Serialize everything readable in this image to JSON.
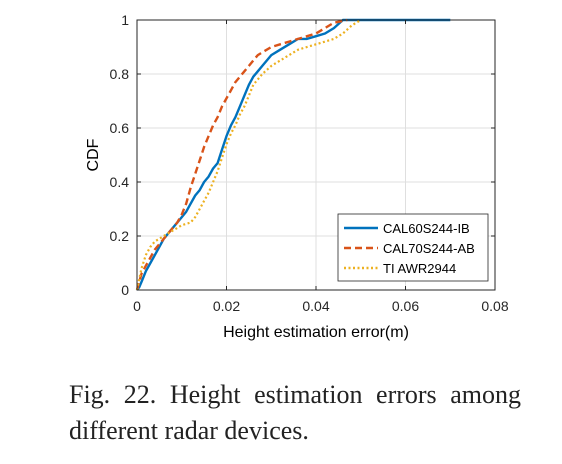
{
  "caption": "Fig. 22. Height estimation errors among different radar devices.",
  "chart_data": {
    "type": "line",
    "title": "",
    "xlabel": "Height estimation error(m)",
    "ylabel": "CDF",
    "xlim": [
      0,
      0.08
    ],
    "ylim": [
      0,
      1
    ],
    "xticks": [
      0,
      0.02,
      0.04,
      0.06,
      0.08
    ],
    "xtick_labels": [
      "0",
      "0.02",
      "0.04",
      "0.06",
      "0.08"
    ],
    "yticks": [
      0,
      0.2,
      0.4,
      0.6,
      0.8,
      1
    ],
    "ytick_labels": [
      "0",
      "0.2",
      "0.4",
      "0.6",
      "0.8",
      "1"
    ],
    "grid": true,
    "legend_position": "bottom-right",
    "series": [
      {
        "name": "CAL60S244-IB",
        "color": "#0072BD",
        "style": "solid",
        "x": [
          0,
          0.0005,
          0.001,
          0.002,
          0.003,
          0.004,
          0.005,
          0.006,
          0.007,
          0.008,
          0.009,
          0.01,
          0.011,
          0.012,
          0.013,
          0.014,
          0.015,
          0.016,
          0.017,
          0.018,
          0.019,
          0.02,
          0.021,
          0.022,
          0.023,
          0.024,
          0.025,
          0.026,
          0.027,
          0.028,
          0.029,
          0.03,
          0.032,
          0.034,
          0.036,
          0.038,
          0.04,
          0.042,
          0.044,
          0.046,
          0.05,
          0.07
        ],
        "y": [
          0,
          0.01,
          0.03,
          0.07,
          0.1,
          0.13,
          0.16,
          0.19,
          0.21,
          0.23,
          0.25,
          0.27,
          0.29,
          0.32,
          0.35,
          0.37,
          0.4,
          0.42,
          0.45,
          0.47,
          0.52,
          0.57,
          0.61,
          0.64,
          0.68,
          0.72,
          0.76,
          0.79,
          0.81,
          0.83,
          0.85,
          0.87,
          0.89,
          0.91,
          0.93,
          0.93,
          0.94,
          0.95,
          0.97,
          1.0,
          1.0,
          1.0
        ]
      },
      {
        "name": "CAL70S244-AB",
        "color": "#D95319",
        "style": "dashed",
        "x": [
          0,
          0.0005,
          0.001,
          0.002,
          0.003,
          0.004,
          0.005,
          0.006,
          0.007,
          0.008,
          0.009,
          0.01,
          0.011,
          0.012,
          0.013,
          0.014,
          0.015,
          0.016,
          0.017,
          0.018,
          0.019,
          0.02,
          0.021,
          0.022,
          0.023,
          0.024,
          0.025,
          0.026,
          0.027,
          0.028,
          0.03,
          0.032,
          0.034,
          0.036,
          0.038,
          0.04,
          0.042,
          0.044,
          0.047
        ],
        "y": [
          0,
          0.03,
          0.06,
          0.09,
          0.12,
          0.15,
          0.17,
          0.19,
          0.21,
          0.23,
          0.25,
          0.28,
          0.32,
          0.38,
          0.43,
          0.48,
          0.53,
          0.57,
          0.61,
          0.64,
          0.68,
          0.71,
          0.74,
          0.77,
          0.79,
          0.81,
          0.83,
          0.85,
          0.87,
          0.88,
          0.9,
          0.91,
          0.92,
          0.93,
          0.94,
          0.95,
          0.97,
          0.99,
          1.0
        ]
      },
      {
        "name": "TI AWR2944",
        "color": "#EDB120",
        "style": "dotted",
        "x": [
          0,
          0.001,
          0.002,
          0.003,
          0.004,
          0.005,
          0.006,
          0.007,
          0.008,
          0.01,
          0.012,
          0.013,
          0.014,
          0.015,
          0.016,
          0.017,
          0.018,
          0.019,
          0.02,
          0.021,
          0.022,
          0.023,
          0.024,
          0.025,
          0.026,
          0.027,
          0.028,
          0.03,
          0.032,
          0.034,
          0.036,
          0.038,
          0.04,
          0.042,
          0.044,
          0.046,
          0.048,
          0.05
        ],
        "y": [
          0,
          0.08,
          0.13,
          0.16,
          0.18,
          0.19,
          0.2,
          0.21,
          0.22,
          0.24,
          0.25,
          0.27,
          0.3,
          0.33,
          0.36,
          0.4,
          0.44,
          0.49,
          0.54,
          0.58,
          0.61,
          0.65,
          0.68,
          0.72,
          0.76,
          0.78,
          0.8,
          0.83,
          0.85,
          0.87,
          0.89,
          0.9,
          0.91,
          0.92,
          0.93,
          0.95,
          0.98,
          1.0
        ]
      }
    ]
  }
}
